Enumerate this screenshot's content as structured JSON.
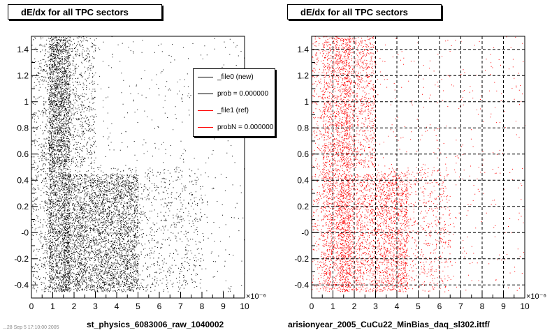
{
  "footer": {
    "date_text": "...28 Sep  5 17:10:00 2005"
  },
  "colors": {
    "file0": "#000000",
    "file1": "#ff0000",
    "grid": "#000000",
    "background": "#ffffff"
  },
  "chart_data": [
    {
      "type": "scatter",
      "title": "dE/dx for all TPC sectors",
      "xlabel": "st_physics_6083006_raw_1040002",
      "ylabel": "",
      "x_exponent": "×10⁻⁶",
      "xlim": [
        0,
        10
      ],
      "ylim": [
        -0.5,
        1.5
      ],
      "x_ticks": [
        "0",
        "1",
        "2",
        "3",
        "4",
        "5",
        "6",
        "7",
        "8",
        "9",
        "10"
      ],
      "y_ticks": [
        "-0.4",
        "-0.2",
        "-0",
        "0.2",
        "0.4",
        "0.6",
        "0.8",
        "1",
        "1.2",
        "1.4"
      ],
      "grid": false,
      "series": [
        {
          "color": "#000000",
          "density_regions": [
            {
              "x": [
                0.8,
                1.8
              ],
              "y": [
                -0.45,
                1.5
              ],
              "weight": 0.3
            },
            {
              "x": [
                1.5,
                5.0
              ],
              "y": [
                -0.45,
                0.45
              ],
              "weight": 0.35
            },
            {
              "x": [
                2.0,
                8.0
              ],
              "y": [
                -0.45,
                0.5
              ],
              "weight": 0.12
            },
            {
              "x": [
                1.0,
                3.0
              ],
              "y": [
                0.5,
                1.5
              ],
              "weight": 0.1
            },
            {
              "x": [
                3.0,
                10.0
              ],
              "y": [
                -0.45,
                1.5
              ],
              "weight": 0.05
            },
            {
              "x": [
                0.5,
                1.0
              ],
              "y": [
                -0.45,
                1.5
              ],
              "weight": 0.05
            },
            {
              "x": [
                0.0,
                0.5
              ],
              "y": [
                -0.45,
                1.5
              ],
              "weight": 0.03
            }
          ]
        }
      ],
      "legend": {
        "placement": "top-right",
        "entries": [
          {
            "label": "_file0 (new)",
            "color": "#000000"
          },
          {
            "label": "prob = 0.000000",
            "color": "#000000"
          },
          {
            "label": "_file1 (ref)",
            "color": "#ff0000"
          },
          {
            "label": "probN = 0.000000",
            "color": "#ff0000"
          }
        ]
      }
    },
    {
      "type": "scatter",
      "title": "dE/dx for all TPC sectors",
      "xlabel": "arisionyear_2005_CuCu22_MinBias_daq_sl302.ittf/",
      "ylabel": "",
      "x_exponent": "×10⁻⁶",
      "xlim": [
        0,
        10
      ],
      "ylim": [
        -0.5,
        1.5
      ],
      "x_ticks": [
        "0",
        "1",
        "2",
        "3",
        "4",
        "5",
        "6",
        "7",
        "8",
        "9",
        "10"
      ],
      "y_ticks": [
        "-0.4",
        "-0.2",
        "-0",
        "0.2",
        "0.4",
        "0.6",
        "0.8",
        "1",
        "1.2",
        "1.4"
      ],
      "grid": true,
      "series": [
        {
          "color": "#ff0000",
          "density_regions": [
            {
              "x": [
                0.5,
                1.8
              ],
              "y": [
                -0.45,
                1.5
              ],
              "weight": 0.32
            },
            {
              "x": [
                1.3,
                4.5
              ],
              "y": [
                -0.45,
                0.45
              ],
              "weight": 0.3
            },
            {
              "x": [
                1.5,
                3.0
              ],
              "y": [
                0.5,
                1.5
              ],
              "weight": 0.12
            },
            {
              "x": [
                3.0,
                6.5
              ],
              "y": [
                -0.45,
                0.5
              ],
              "weight": 0.1
            },
            {
              "x": [
                3.0,
                10.0
              ],
              "y": [
                -0.45,
                1.5
              ],
              "weight": 0.06
            },
            {
              "x": [
                0.0,
                0.5
              ],
              "y": [
                -0.45,
                1.5
              ],
              "weight": 0.04
            }
          ]
        }
      ]
    }
  ]
}
